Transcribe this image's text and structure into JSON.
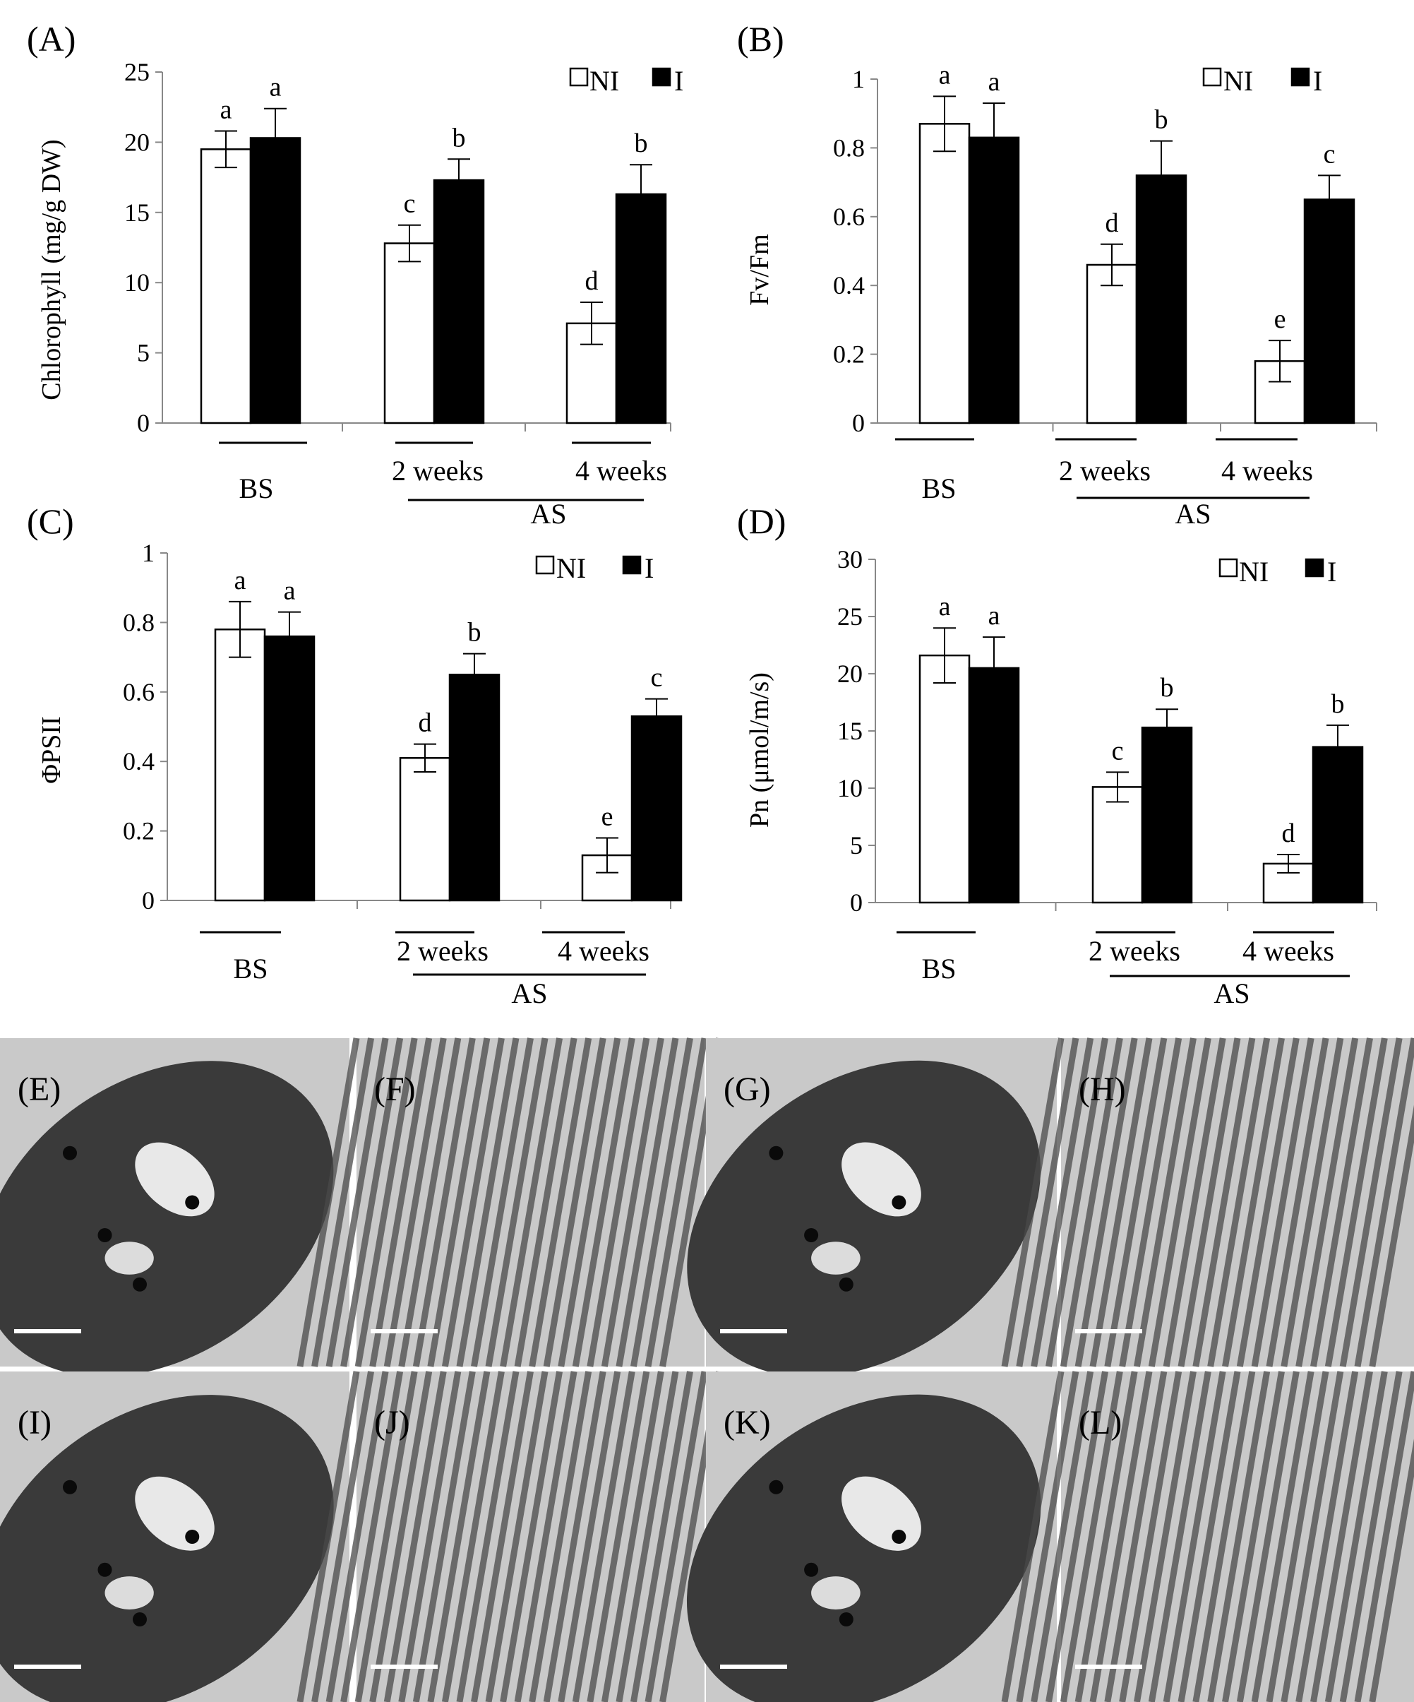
{
  "legend": {
    "ni_label": "NI",
    "i_label": "I"
  },
  "colors": {
    "ni_fill": "#ffffff",
    "i_fill": "#000000",
    "stroke": "#000000"
  },
  "chart_data": [
    {
      "panel": "(A)",
      "type": "bar",
      "ylabel": "Chlorophyll (mg/g DW)",
      "ylim": [
        0,
        25
      ],
      "yticks": [
        "0",
        "5",
        "10",
        "15",
        "20",
        "25"
      ],
      "categories": [
        "BS",
        "2 weeks",
        "4 weeks"
      ],
      "group_label": "AS",
      "legend_position": "top-right",
      "series": [
        {
          "name": "NI",
          "values": [
            19.5,
            12.8,
            7.1
          ],
          "errors": [
            1.3,
            1.3,
            1.5
          ],
          "letters": [
            "a",
            "c",
            "d"
          ]
        },
        {
          "name": "I",
          "values": [
            20.3,
            17.3,
            16.3
          ],
          "errors": [
            2.1,
            1.5,
            2.1
          ],
          "letters": [
            "a",
            "b",
            "b"
          ]
        }
      ]
    },
    {
      "panel": "(B)",
      "type": "bar",
      "ylabel": "Fv/Fm",
      "ylim": [
        0,
        1
      ],
      "yticks": [
        "0",
        "0.2",
        "0.4",
        "0.6",
        "0.8",
        "1"
      ],
      "categories": [
        "BS",
        "2 weeks",
        "4 weeks"
      ],
      "group_label": "AS",
      "legend_position": "top-right",
      "series": [
        {
          "name": "NI",
          "values": [
            0.87,
            0.46,
            0.18
          ],
          "errors": [
            0.08,
            0.06,
            0.06
          ],
          "letters": [
            "a",
            "d",
            "e"
          ]
        },
        {
          "name": "I",
          "values": [
            0.83,
            0.72,
            0.65
          ],
          "errors": [
            0.1,
            0.1,
            0.07
          ],
          "letters": [
            "a",
            "b",
            "c"
          ]
        }
      ]
    },
    {
      "panel": "(C)",
      "type": "bar",
      "ylabel": "ΦPSII",
      "ylim": [
        0,
        1
      ],
      "yticks": [
        "0",
        "0.2",
        "0.4",
        "0.6",
        "0.8",
        "1"
      ],
      "categories": [
        "BS",
        "2 weeks",
        "4 weeks"
      ],
      "group_label": "AS",
      "legend_position": "top-right",
      "series": [
        {
          "name": "NI",
          "values": [
            0.78,
            0.41,
            0.13
          ],
          "errors": [
            0.08,
            0.04,
            0.05
          ],
          "letters": [
            "a",
            "d",
            "e"
          ]
        },
        {
          "name": "I",
          "values": [
            0.76,
            0.65,
            0.53
          ],
          "errors": [
            0.07,
            0.06,
            0.05
          ],
          "letters": [
            "a",
            "b",
            "c"
          ]
        }
      ]
    },
    {
      "panel": "(D)",
      "type": "bar",
      "ylabel": "Pn (μmol/m/s)",
      "ylim": [
        0,
        30
      ],
      "yticks": [
        "0",
        "5",
        "10",
        "15",
        "20",
        "25",
        "30"
      ],
      "categories": [
        "BS",
        "2 weeks",
        "4 weeks"
      ],
      "group_label": "AS",
      "legend_position": "top-right",
      "series": [
        {
          "name": "NI",
          "values": [
            21.6,
            10.1,
            3.4
          ],
          "errors": [
            2.4,
            1.3,
            0.8
          ],
          "letters": [
            "a",
            "c",
            "d"
          ]
        },
        {
          "name": "I",
          "values": [
            20.5,
            15.3,
            13.6
          ],
          "errors": [
            2.7,
            1.6,
            1.9
          ],
          "letters": [
            "a",
            "b",
            "b"
          ]
        }
      ]
    }
  ],
  "micrographs": [
    {
      "label": "(E)",
      "kind": "chloroplast"
    },
    {
      "label": "(F)",
      "kind": "thylakoid"
    },
    {
      "label": "(G)",
      "kind": "chloroplast"
    },
    {
      "label": "(H)",
      "kind": "thylakoid"
    },
    {
      "label": "(I)",
      "kind": "chloroplast"
    },
    {
      "label": "(J)",
      "kind": "thylakoid"
    },
    {
      "label": "(K)",
      "kind": "chloroplast"
    },
    {
      "label": "(L)",
      "kind": "thylakoid"
    }
  ]
}
